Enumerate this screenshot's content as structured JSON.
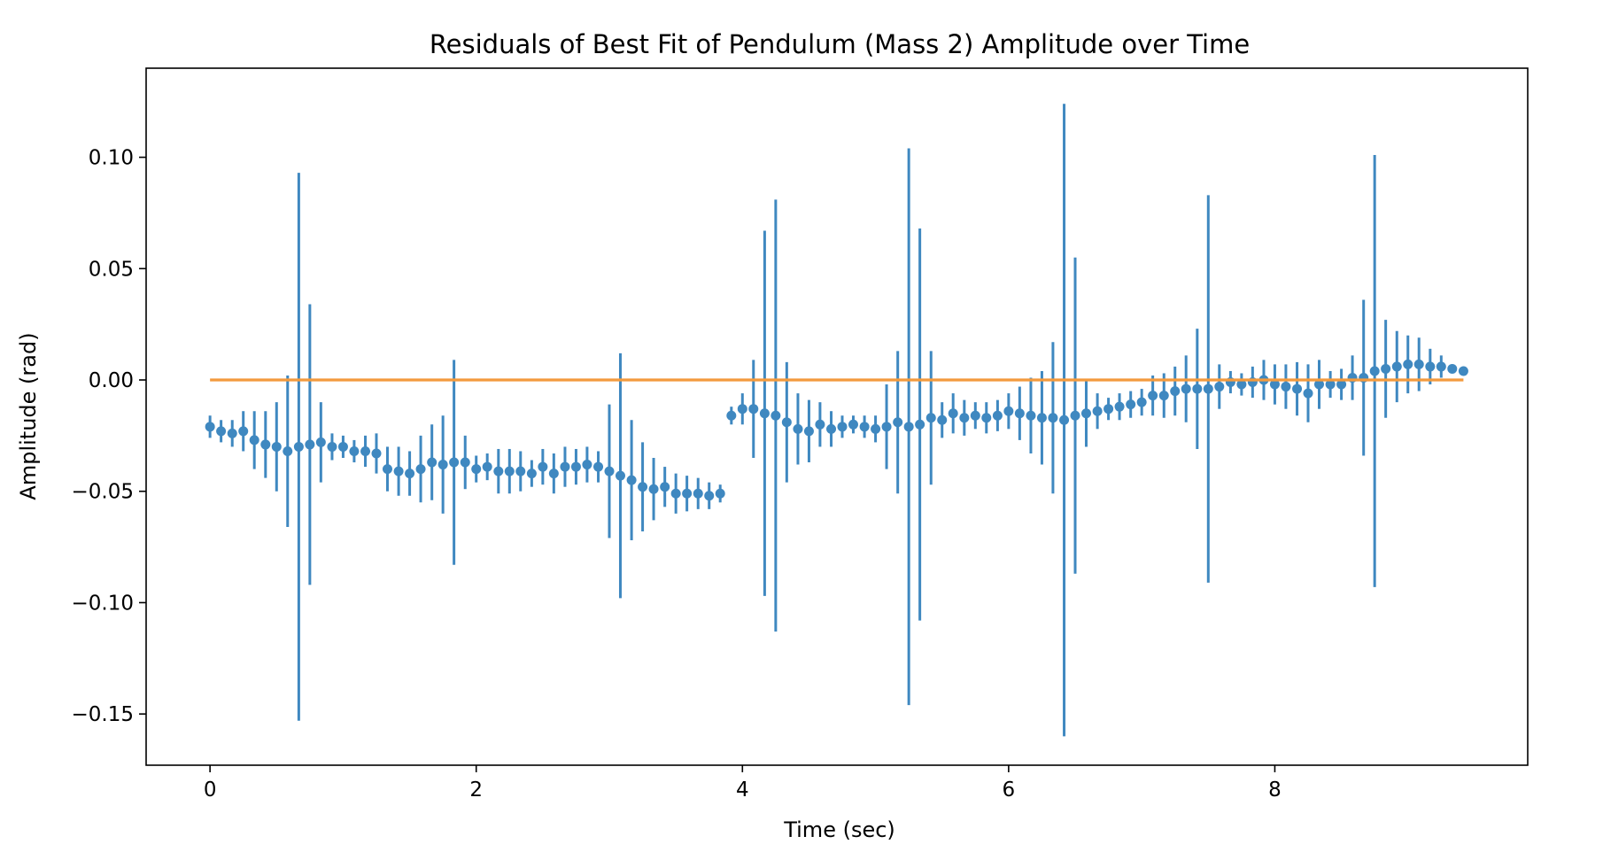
{
  "chart_data": {
    "type": "scatter",
    "title": "Residuals of Best Fit of Pendulum (Mass 2) Amplitude over Time",
    "xlabel": "Time (sec)",
    "ylabel": "Amplitude (rad)",
    "xlim": [
      -0.48,
      9.9
    ],
    "ylim": [
      -0.173,
      0.14
    ],
    "xticks": [
      0,
      2,
      4,
      6,
      8
    ],
    "xtick_labels": [
      "0",
      "2",
      "4",
      "6",
      "8"
    ],
    "yticks": [
      0.1,
      0.05,
      0.0,
      -0.05,
      -0.1,
      -0.15
    ],
    "ytick_labels": [
      "0.10",
      "0.05",
      "0.00",
      "−0.05",
      "−0.10",
      "−0.15"
    ],
    "grid": false,
    "legend": "none",
    "series": [
      {
        "kind": "errorbar",
        "color": "#3f88c0",
        "x": [
          0,
          0.083,
          0.167,
          0.25,
          0.333,
          0.417,
          0.5,
          0.583,
          0.667,
          0.75,
          0.833,
          0.917,
          1,
          1.083,
          1.167,
          1.25,
          1.333,
          1.417,
          1.5,
          1.583,
          1.667,
          1.75,
          1.833,
          1.917,
          2,
          2.083,
          2.167,
          2.25,
          2.333,
          2.417,
          2.5,
          2.583,
          2.667,
          2.75,
          2.833,
          2.917,
          3,
          3.083,
          3.167,
          3.25,
          3.333,
          3.417,
          3.5,
          3.583,
          3.667,
          3.75,
          3.833,
          3.917,
          4,
          4.083,
          4.167,
          4.25,
          4.333,
          4.417,
          4.5,
          4.583,
          4.667,
          4.75,
          4.833,
          4.917,
          5,
          5.083,
          5.167,
          5.25,
          5.333,
          5.417,
          5.5,
          5.583,
          5.667,
          5.75,
          5.833,
          5.917,
          6,
          6.083,
          6.167,
          6.25,
          6.333,
          6.417,
          6.5,
          6.583,
          6.667,
          6.75,
          6.833,
          6.917,
          7,
          7.083,
          7.167,
          7.25,
          7.333,
          7.417,
          7.5,
          7.583,
          7.667,
          7.75,
          7.833,
          7.917,
          8,
          8.083,
          8.167,
          8.25,
          8.333,
          8.417,
          8.5,
          8.583,
          8.667,
          8.75,
          8.833,
          8.917,
          9,
          9.083,
          9.167,
          9.25,
          9.333,
          9.417
        ],
        "y": [
          -0.021,
          -0.023,
          -0.024,
          -0.023,
          -0.027,
          -0.029,
          -0.03,
          -0.032,
          -0.03,
          -0.029,
          -0.028,
          -0.03,
          -0.03,
          -0.032,
          -0.032,
          -0.033,
          -0.04,
          -0.041,
          -0.042,
          -0.04,
          -0.037,
          -0.038,
          -0.037,
          -0.037,
          -0.04,
          -0.039,
          -0.041,
          -0.041,
          -0.041,
          -0.042,
          -0.039,
          -0.042,
          -0.039,
          -0.039,
          -0.038,
          -0.039,
          -0.041,
          -0.043,
          -0.045,
          -0.048,
          -0.049,
          -0.048,
          -0.051,
          -0.051,
          -0.051,
          -0.052,
          -0.051,
          -0.016,
          -0.013,
          -0.013,
          -0.015,
          -0.016,
          -0.019,
          -0.022,
          -0.023,
          -0.02,
          -0.022,
          -0.021,
          -0.02,
          -0.021,
          -0.022,
          -0.021,
          -0.019,
          -0.021,
          -0.02,
          -0.017,
          -0.018,
          -0.015,
          -0.017,
          -0.016,
          -0.017,
          -0.016,
          -0.014,
          -0.015,
          -0.016,
          -0.017,
          -0.017,
          -0.018,
          -0.016,
          -0.015,
          -0.014,
          -0.013,
          -0.012,
          -0.011,
          -0.01,
          -0.007,
          -0.007,
          -0.005,
          -0.004,
          -0.004,
          -0.004,
          -0.003,
          -0.001,
          -0.002,
          -0.001,
          0.0,
          -0.002,
          -0.003,
          -0.004,
          -0.006,
          -0.002,
          -0.002,
          -0.002,
          0.001,
          0.001,
          0.004,
          0.005,
          0.006,
          0.007,
          0.007,
          0.006,
          0.006,
          0.005,
          0.004
        ],
        "yerr": [
          0.005,
          0.005,
          0.006,
          0.009,
          0.013,
          0.015,
          0.02,
          0.034,
          0.123,
          0.063,
          0.018,
          0.006,
          0.005,
          0.005,
          0.007,
          0.009,
          0.01,
          0.011,
          0.01,
          0.015,
          0.017,
          0.022,
          0.046,
          0.012,
          0.006,
          0.006,
          0.01,
          0.01,
          0.009,
          0.006,
          0.008,
          0.009,
          0.009,
          0.008,
          0.008,
          0.007,
          0.03,
          0.055,
          0.027,
          0.02,
          0.014,
          0.009,
          0.009,
          0.008,
          0.007,
          0.006,
          0.004,
          0.004,
          0.007,
          0.022,
          0.082,
          0.097,
          0.027,
          0.016,
          0.014,
          0.01,
          0.008,
          0.005,
          0.004,
          0.005,
          0.006,
          0.019,
          0.032,
          0.125,
          0.088,
          0.03,
          0.008,
          0.009,
          0.008,
          0.006,
          0.007,
          0.007,
          0.008,
          0.012,
          0.017,
          0.021,
          0.034,
          0.142,
          0.071,
          0.015,
          0.008,
          0.005,
          0.006,
          0.006,
          0.006,
          0.009,
          0.01,
          0.011,
          0.015,
          0.027,
          0.087,
          0.01,
          0.005,
          0.005,
          0.007,
          0.009,
          0.009,
          0.01,
          0.012,
          0.013,
          0.011,
          0.006,
          0.007,
          0.01,
          0.035,
          0.097,
          0.022,
          0.016,
          0.013,
          0.012,
          0.008,
          0.005,
          0.002,
          0.002
        ]
      },
      {
        "kind": "line",
        "color": "#f39a3d",
        "x": [
          0,
          9.417
        ],
        "y": [
          0.0,
          0.0
        ]
      }
    ]
  }
}
